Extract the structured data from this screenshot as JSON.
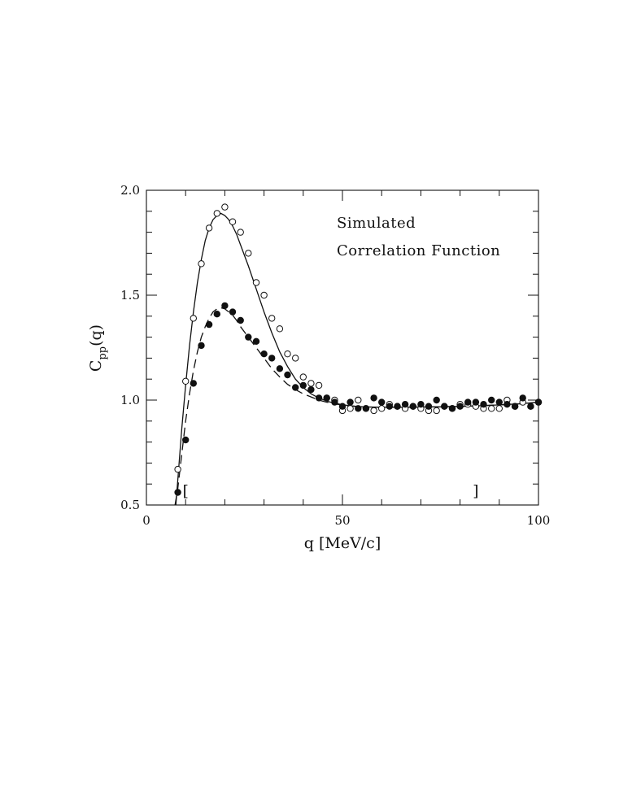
{
  "chart_data": {
    "type": "scatter",
    "title": "",
    "xlabel": "q [MeV/c]",
    "ylabel": {
      "main": "C",
      "subscript": "pp",
      "suffix": "(q)"
    },
    "xlim": [
      0,
      100
    ],
    "ylim": [
      0.5,
      2.0
    ],
    "xticks": [
      0,
      50,
      100
    ],
    "xtick_labels": [
      "0",
      "50",
      "100"
    ],
    "yticks": [
      0.5,
      1.0,
      1.5,
      2.0
    ],
    "ytick_labels": [
      "0.5",
      "1.0",
      "1.5",
      "2.0"
    ],
    "annotations": [
      "Simulated",
      "Correlation Function"
    ],
    "bracket_left": {
      "x": 10,
      "y": 0.57,
      "text": "["
    },
    "bracket_right": {
      "x": 84,
      "y": 0.57,
      "text": "]"
    },
    "grid": false,
    "series": [
      {
        "marker": "open-circle",
        "x": [
          8,
          10,
          12,
          14,
          16,
          18,
          20,
          22,
          24,
          26,
          28,
          30,
          32,
          34,
          36,
          38,
          40,
          42,
          44,
          46,
          48,
          50,
          52,
          54,
          56,
          58,
          60,
          62,
          64,
          66,
          68,
          70,
          72,
          74,
          76,
          78,
          80,
          82,
          84,
          86,
          88,
          90,
          92,
          94,
          96,
          98,
          100
        ],
        "y": [
          0.67,
          1.09,
          1.39,
          1.65,
          1.82,
          1.89,
          1.92,
          1.85,
          1.8,
          1.7,
          1.56,
          1.5,
          1.39,
          1.34,
          1.22,
          1.2,
          1.11,
          1.08,
          1.07,
          1.01,
          1.0,
          0.95,
          0.96,
          1.0,
          0.96,
          0.95,
          0.96,
          0.98,
          0.97,
          0.96,
          0.97,
          0.96,
          0.95,
          0.95,
          0.97,
          0.96,
          0.98,
          0.98,
          0.97,
          0.96,
          0.96,
          0.96,
          1.0,
          0.97,
          0.99,
          0.97,
          0.99
        ]
      },
      {
        "marker": "filled-circle",
        "x": [
          8,
          10,
          12,
          14,
          16,
          18,
          20,
          22,
          24,
          26,
          28,
          30,
          32,
          34,
          36,
          38,
          40,
          42,
          44,
          46,
          48,
          50,
          52,
          54,
          56,
          58,
          60,
          62,
          64,
          66,
          68,
          70,
          72,
          74,
          76,
          78,
          80,
          82,
          84,
          86,
          88,
          90,
          92,
          94,
          96,
          98,
          100
        ],
        "y": [
          0.56,
          0.81,
          1.08,
          1.26,
          1.36,
          1.41,
          1.45,
          1.42,
          1.38,
          1.3,
          1.28,
          1.22,
          1.2,
          1.15,
          1.12,
          1.06,
          1.07,
          1.05,
          1.01,
          1.01,
          0.99,
          0.97,
          0.99,
          0.96,
          0.96,
          1.01,
          0.99,
          0.97,
          0.97,
          0.98,
          0.97,
          0.98,
          0.97,
          1.0,
          0.97,
          0.96,
          0.97,
          0.99,
          0.99,
          0.98,
          1.0,
          0.99,
          0.98,
          0.97,
          1.01,
          0.97,
          0.99
        ]
      },
      {
        "style": "solid-line",
        "x": [
          7.5,
          8,
          9,
          10,
          11,
          12,
          13,
          14,
          15,
          16,
          17,
          18,
          19,
          20,
          21,
          22,
          23,
          24,
          26,
          28,
          30,
          32,
          34,
          36,
          38,
          40,
          42,
          44,
          46,
          48,
          50,
          52,
          55,
          60,
          65,
          70,
          75,
          80,
          85,
          90,
          95,
          100
        ],
        "y": [
          0.5,
          0.62,
          0.86,
          1.07,
          1.26,
          1.42,
          1.56,
          1.67,
          1.76,
          1.82,
          1.86,
          1.88,
          1.89,
          1.88,
          1.86,
          1.83,
          1.79,
          1.74,
          1.64,
          1.53,
          1.42,
          1.32,
          1.23,
          1.16,
          1.1,
          1.06,
          1.03,
          1.01,
          0.995,
          0.985,
          0.978,
          0.973,
          0.968,
          0.966,
          0.966,
          0.967,
          0.968,
          0.97,
          0.973,
          0.977,
          0.982,
          0.99
        ]
      },
      {
        "style": "dashed-line",
        "x": [
          7.3,
          8,
          9,
          10,
          11,
          12,
          13,
          14,
          15,
          16,
          17,
          18,
          19,
          20,
          21,
          22,
          23,
          24,
          26,
          28,
          30,
          32,
          34,
          36,
          38,
          40,
          42,
          44,
          46,
          48,
          50,
          52,
          55,
          60,
          65,
          70,
          75,
          80,
          85,
          90,
          95,
          100
        ],
        "y": [
          0.5,
          0.58,
          0.74,
          0.9,
          1.03,
          1.14,
          1.23,
          1.3,
          1.35,
          1.39,
          1.42,
          1.435,
          1.44,
          1.435,
          1.42,
          1.405,
          1.38,
          1.35,
          1.3,
          1.25,
          1.2,
          1.15,
          1.11,
          1.075,
          1.05,
          1.03,
          1.015,
          1.0,
          0.99,
          0.982,
          0.976,
          0.972,
          0.968,
          0.966,
          0.966,
          0.967,
          0.968,
          0.97,
          0.973,
          0.977,
          0.982,
          0.99
        ]
      }
    ]
  }
}
